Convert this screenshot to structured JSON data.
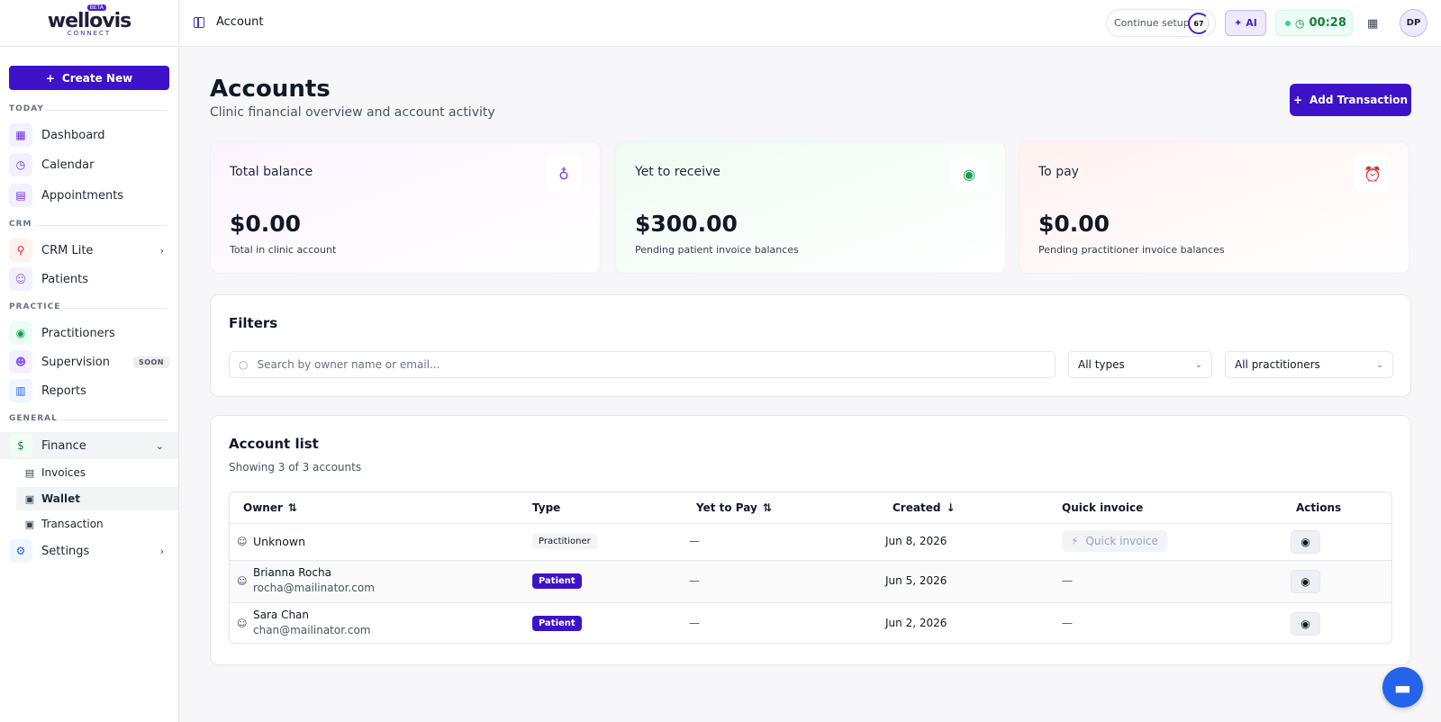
{
  "logo": {
    "name": "wellovis",
    "sub": "CONNECT",
    "badge": "BETA"
  },
  "sidebar": {
    "create_new": "Create New",
    "sections": {
      "today": "TODAY",
      "crm": "CRM",
      "practice": "PRACTICE",
      "general": "GENERAL"
    },
    "items": {
      "dashboard": "Dashboard",
      "calendar": "Calendar",
      "appointments": "Appointments",
      "crm_lite": "CRM Lite",
      "patients": "Patients",
      "practitioners": "Practitioners",
      "supervision": "Supervision",
      "supervision_badge": "SOON",
      "reports": "Reports",
      "finance": "Finance",
      "invoices": "Invoices",
      "wallet": "Wallet",
      "transaction": "Transaction",
      "settings": "Settings"
    }
  },
  "topbar": {
    "breadcrumb": "Account",
    "continue_setup": "Continue setup",
    "setup_progress": "67",
    "ai_label": "AI",
    "timer": "00:28",
    "avatar_initials": "DP"
  },
  "page": {
    "title": "Accounts",
    "subtitle": "Clinic financial overview and account activity",
    "add_transaction": "Add Transaction"
  },
  "cards": [
    {
      "label": "Total balance",
      "amount": "$0.00",
      "sub": "Total in clinic account",
      "icon": "piggy-bank-icon",
      "color": "#7c3aed"
    },
    {
      "label": "Yet to receive",
      "amount": "$300.00",
      "sub": "Pending patient invoice balances",
      "icon": "user-circle-icon",
      "color": "#16a34a"
    },
    {
      "label": "To pay",
      "amount": "$0.00",
      "sub": "Pending practitioner invoice balances",
      "icon": "alarm-clock-icon",
      "color": "#dc2626"
    }
  ],
  "filters": {
    "title": "Filters",
    "search_placeholder": "Search by owner name or email...",
    "type_select": "All types",
    "practitioner_select": "All practitioners"
  },
  "accounts": {
    "title": "Account list",
    "showing": "Showing 3 of 3 accounts",
    "columns": [
      "Owner",
      "Type",
      "Yet to Pay",
      "Created",
      "Quick invoice",
      "Actions"
    ],
    "rows": [
      {
        "name": "Unknown",
        "email": "",
        "type": "Practitioner",
        "yet_to_pay": "—",
        "created": "Jun 8, 2026",
        "quick_invoice": "Quick invoice"
      },
      {
        "name": "Brianna Rocha",
        "email": "rocha@mailinator.com",
        "type": "Patient",
        "yet_to_pay": "—",
        "created": "Jun 5, 2026",
        "quick_invoice": "—"
      },
      {
        "name": "Sara Chan",
        "email": "chan@mailinator.com",
        "type": "Patient",
        "yet_to_pay": "—",
        "created": "Jun 2, 2026",
        "quick_invoice": "—"
      }
    ]
  },
  "colors": {
    "primary": "#3d12c9",
    "accent_green": "#15803d"
  }
}
